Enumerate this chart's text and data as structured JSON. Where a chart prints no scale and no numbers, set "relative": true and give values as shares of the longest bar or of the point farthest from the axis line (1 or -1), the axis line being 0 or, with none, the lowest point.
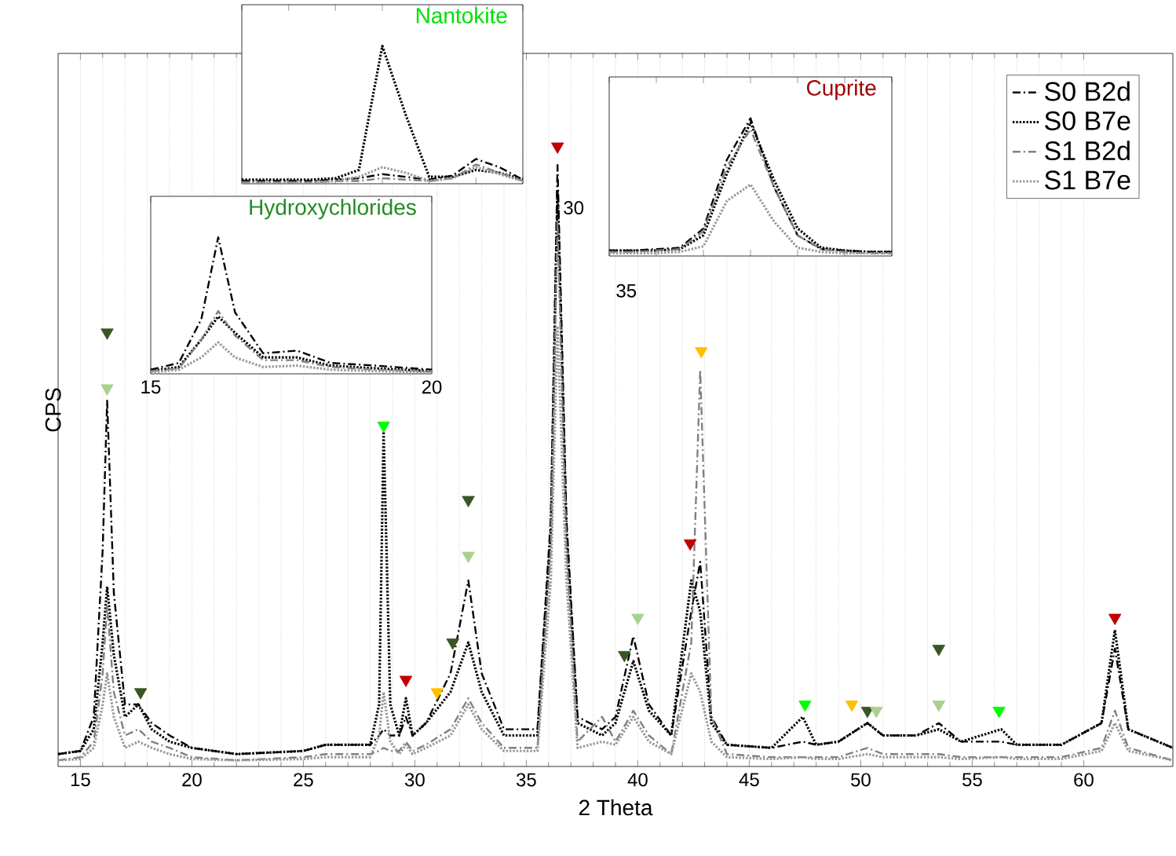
{
  "chart_data": [
    {
      "type": "line",
      "xlabel": "2 Theta",
      "ylabel": "CPS",
      "relative": true,
      "xlim": [
        14,
        64
      ],
      "xticks": [
        15,
        20,
        25,
        30,
        35,
        40,
        45,
        50,
        55,
        60
      ],
      "grid": "x",
      "legend": "top right",
      "marker": "none",
      "x": [
        14,
        15,
        15.6,
        16,
        16.2,
        16.5,
        17,
        17.6,
        18.2,
        19,
        20,
        22,
        25,
        26,
        28,
        28.4,
        28.6,
        28.9,
        29.3,
        29.6,
        29.9,
        30.5,
        31.6,
        32.4,
        33,
        34,
        35.5,
        36.1,
        36.4,
        36.8,
        37.3,
        38.4,
        39,
        39.8,
        40.5,
        41.5,
        42.4,
        42.8,
        43.3,
        44,
        46,
        47.4,
        48,
        49,
        50.3,
        51,
        52.5,
        53.5,
        54.5,
        56.3,
        57,
        59,
        60.8,
        61.4,
        62,
        64
      ],
      "series": [
        {
          "name": "S0 B2d",
          "color": "#000000",
          "line_style": "dashdot",
          "values": [
            0.02,
            0.025,
            0.08,
            0.35,
            0.59,
            0.28,
            0.1,
            0.1,
            0.07,
            0.05,
            0.03,
            0.02,
            0.025,
            0.035,
            0.035,
            0.05,
            0.06,
            0.05,
            0.05,
            0.08,
            0.05,
            0.07,
            0.15,
            0.3,
            0.15,
            0.06,
            0.06,
            0.4,
            0.97,
            0.4,
            0.08,
            0.06,
            0.08,
            0.21,
            0.1,
            0.05,
            0.25,
            0.33,
            0.08,
            0.035,
            0.03,
            0.04,
            0.035,
            0.04,
            0.07,
            0.05,
            0.05,
            0.07,
            0.04,
            0.04,
            0.035,
            0.035,
            0.07,
            0.19,
            0.06,
            0.03
          ]
        },
        {
          "name": "S0 B7e",
          "color": "#000000",
          "line_style": "dotted",
          "values": [
            0.02,
            0.025,
            0.06,
            0.2,
            0.29,
            0.18,
            0.08,
            0.1,
            0.06,
            0.04,
            0.03,
            0.02,
            0.025,
            0.035,
            0.035,
            0.1,
            0.54,
            0.1,
            0.05,
            0.11,
            0.05,
            0.07,
            0.12,
            0.2,
            0.12,
            0.05,
            0.05,
            0.38,
            0.93,
            0.38,
            0.07,
            0.05,
            0.07,
            0.17,
            0.09,
            0.05,
            0.3,
            0.25,
            0.07,
            0.035,
            0.03,
            0.08,
            0.035,
            0.04,
            0.07,
            0.05,
            0.05,
            0.06,
            0.04,
            0.06,
            0.035,
            0.035,
            0.07,
            0.22,
            0.06,
            0.03
          ]
        },
        {
          "name": "S1 B2d",
          "color": "#808080",
          "line_style": "dashdot",
          "values": [
            0.01,
            0.015,
            0.04,
            0.15,
            0.26,
            0.12,
            0.05,
            0.06,
            0.04,
            0.03,
            0.015,
            0.01,
            0.015,
            0.02,
            0.02,
            0.025,
            0.03,
            0.025,
            0.025,
            0.04,
            0.025,
            0.035,
            0.06,
            0.11,
            0.07,
            0.03,
            0.03,
            0.35,
            0.88,
            0.35,
            0.04,
            0.08,
            0.04,
            0.09,
            0.05,
            0.02,
            0.2,
            0.64,
            0.08,
            0.02,
            0.015,
            0.015,
            0.015,
            0.015,
            0.03,
            0.02,
            0.02,
            0.02,
            0.015,
            0.015,
            0.015,
            0.015,
            0.03,
            0.09,
            0.03,
            0.01
          ]
        },
        {
          "name": "S1 B7e",
          "color": "#999999",
          "line_style": "dotted",
          "values": [
            0.01,
            0.012,
            0.03,
            0.1,
            0.15,
            0.08,
            0.03,
            0.04,
            0.03,
            0.02,
            0.012,
            0.01,
            0.012,
            0.015,
            0.015,
            0.05,
            0.12,
            0.04,
            0.02,
            0.035,
            0.02,
            0.03,
            0.05,
            0.1,
            0.06,
            0.025,
            0.025,
            0.3,
            0.71,
            0.3,
            0.03,
            0.04,
            0.035,
            0.08,
            0.04,
            0.02,
            0.15,
            0.12,
            0.04,
            0.015,
            0.012,
            0.015,
            0.012,
            0.012,
            0.02,
            0.015,
            0.015,
            0.015,
            0.012,
            0.015,
            0.012,
            0.012,
            0.025,
            0.07,
            0.025,
            0.01
          ]
        },
        {
          "type": "scatter",
          "marker": "triangle",
          "x": [
            16.2,
            16.2,
            17.7,
            28.6,
            29.6,
            31.0,
            31.7,
            32.4,
            32.4,
            36.4,
            39.4,
            40.0,
            42.35,
            42.85,
            47.5,
            49.6,
            50.3,
            50.7,
            53.5,
            53.5,
            56.2,
            61.4
          ],
          "values": [
            0.7,
            0.61,
            0.12,
            0.55,
            0.14,
            0.12,
            0.2,
            0.43,
            0.34,
            1.0,
            0.18,
            0.24,
            0.36,
            0.67,
            0.1,
            0.1,
            0.09,
            0.09,
            0.19,
            0.1,
            0.09,
            0.24
          ],
          "colors": [
            "#375623",
            "#a9d18e",
            "#375623",
            "#00ff00",
            "#c00000",
            "#ffc000",
            "#375623",
            "#375623",
            "#a9d18e",
            "#c00000",
            "#375623",
            "#a9d18e",
            "#c00000",
            "#ffc000",
            "#00ff00",
            "#ffc000",
            "#375623",
            "#a9d18e",
            "#375623",
            "#a9d18e",
            "#00ff00",
            "#c00000"
          ]
        }
      ]
    },
    {
      "type": "line",
      "title": "Nantokite",
      "relative": true,
      "annotations": [
        "30"
      ],
      "marker": "none",
      "categories": [
        null,
        null,
        null,
        null,
        null,
        null,
        null,
        null,
        null,
        null,
        null,
        null,
        null
      ],
      "series": [
        {
          "color": "#000000",
          "line_style": "dashdot",
          "values": [
            0.02,
            0.02,
            0.02,
            0.02,
            0.03,
            0.04,
            0.07,
            0.05,
            0.03,
            0.06,
            0.18,
            0.12,
            0.03
          ]
        },
        {
          "color": "#000000",
          "line_style": "dotted",
          "values": [
            0.03,
            0.03,
            0.03,
            0.03,
            0.04,
            0.1,
            1,
            0.5,
            0.05,
            0.05,
            0.1,
            0.08,
            0.03
          ]
        },
        {
          "color": "#808080",
          "line_style": "dashdot",
          "values": [
            0.01,
            0.01,
            0.01,
            0.01,
            0.02,
            0.02,
            0.04,
            0.03,
            0.02,
            0.04,
            0.14,
            0.08,
            0.02
          ]
        },
        {
          "color": "#999999",
          "line_style": "dotted",
          "values": [
            0.01,
            0.01,
            0.01,
            0.01,
            0.02,
            0.05,
            0.12,
            0.08,
            0.02,
            0.04,
            0.12,
            0.07,
            0.02
          ]
        }
      ]
    },
    {
      "type": "line",
      "title": "Hydroxychlorides",
      "relative": true,
      "xlim": [
        15,
        20
      ],
      "xticks": [
        15,
        20
      ],
      "tick_labels": "x",
      "marker": "none",
      "x": [
        15,
        15.5,
        15.9,
        16.2,
        16.5,
        17,
        17.6,
        18.2,
        19,
        20
      ],
      "series": [
        {
          "color": "#000000",
          "line_style": "dashdot",
          "values": [
            0.03,
            0.08,
            0.4,
            1,
            0.45,
            0.15,
            0.17,
            0.08,
            0.06,
            0.03
          ]
        },
        {
          "color": "#000000",
          "line_style": "dotted",
          "values": [
            0.02,
            0.05,
            0.25,
            0.42,
            0.3,
            0.12,
            0.12,
            0.06,
            0.04,
            0.02
          ]
        },
        {
          "color": "#808080",
          "line_style": "dashdot",
          "values": [
            0.02,
            0.04,
            0.25,
            0.46,
            0.28,
            0.1,
            0.1,
            0.05,
            0.03,
            0.02
          ]
        },
        {
          "color": "#999999",
          "line_style": "dotted",
          "values": [
            0.01,
            0.03,
            0.12,
            0.23,
            0.12,
            0.05,
            0.06,
            0.03,
            0.02,
            0.01
          ]
        }
      ]
    },
    {
      "type": "line",
      "title": "Cuprite",
      "relative": true,
      "annotations": [
        "35"
      ],
      "marker": "none",
      "categories": [
        null,
        null,
        null,
        null,
        null,
        null,
        null,
        null,
        null,
        null,
        null,
        null,
        null
      ],
      "series": [
        {
          "color": "#000000",
          "line_style": "dashdot",
          "values": [
            0.04,
            0.04,
            0.05,
            0.06,
            0.2,
            0.7,
            1,
            0.5,
            0.15,
            0.05,
            0.04,
            0.03,
            0.03
          ]
        },
        {
          "color": "#000000",
          "line_style": "dotted",
          "values": [
            0.04,
            0.04,
            0.04,
            0.05,
            0.15,
            0.6,
            0.97,
            0.55,
            0.2,
            0.06,
            0.04,
            0.03,
            0.03
          ]
        },
        {
          "color": "#808080",
          "line_style": "dashdot",
          "values": [
            0.03,
            0.03,
            0.04,
            0.05,
            0.18,
            0.65,
            0.92,
            0.5,
            0.15,
            0.05,
            0.03,
            0.02,
            0.02
          ]
        },
        {
          "color": "#999999",
          "line_style": "dotted",
          "values": [
            0.02,
            0.02,
            0.02,
            0.03,
            0.07,
            0.4,
            0.52,
            0.25,
            0.06,
            0.03,
            0.02,
            0.02,
            0.02
          ]
        }
      ]
    }
  ]
}
